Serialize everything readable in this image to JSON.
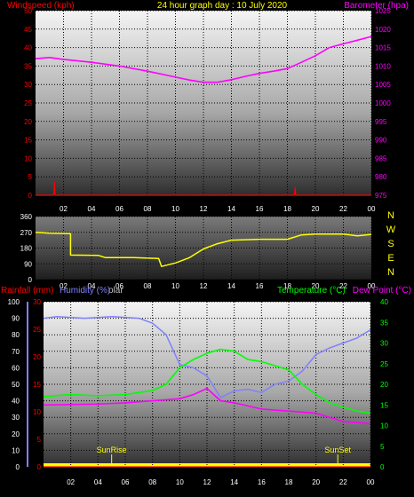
{
  "header": {
    "left_label": "Windspeed (kph)",
    "title": "24 hour graph day : 10 July 2020",
    "right_label": "Barometer (hpa)"
  },
  "colors": {
    "wind": "#ff0000",
    "barometer": "#ff00ff",
    "direction": "#ffff00",
    "rainfall": "#ff0000",
    "humidity": "#8080ff",
    "solar": "#c0c0c0",
    "temperature": "#00ff00",
    "dewpoint": "#ff00ff",
    "grid": "#000000",
    "sun_marker": "#ffff00"
  },
  "chart_data": [
    {
      "type": "line",
      "x_ticks": [
        "02",
        "04",
        "06",
        "08",
        "10",
        "12",
        "14",
        "16",
        "18",
        "20",
        "22",
        "00"
      ],
      "y_left": {
        "label": "Windspeed (kph)",
        "ticks": [
          0,
          5,
          10,
          15,
          20,
          25,
          30,
          35,
          40,
          45,
          50
        ],
        "range": [
          0,
          50
        ]
      },
      "y_right": {
        "label": "Barometer (hpa)",
        "ticks": [
          975,
          980,
          985,
          990,
          995,
          1000,
          1005,
          1010,
          1015,
          1020,
          1025
        ],
        "range": [
          975,
          1025
        ]
      },
      "series": [
        {
          "name": "Windspeed (kph)",
          "axis": "left",
          "points": [
            [
              0,
              0
            ],
            [
              1.3,
              0
            ],
            [
              1.35,
              3.5
            ],
            [
              1.4,
              0
            ],
            [
              18.5,
              0
            ],
            [
              18.55,
              2
            ],
            [
              18.6,
              0
            ],
            [
              24,
              0
            ]
          ]
        },
        {
          "name": "Barometer (hpa)",
          "axis": "right",
          "points": [
            [
              0,
              1012
            ],
            [
              1,
              1012.3
            ],
            [
              2,
              1011.8
            ],
            [
              4,
              1011
            ],
            [
              6,
              1010
            ],
            [
              8,
              1008.6
            ],
            [
              10,
              1007
            ],
            [
              11,
              1006.2
            ],
            [
              12,
              1005.6
            ],
            [
              13,
              1005.6
            ],
            [
              14,
              1006.3
            ],
            [
              15,
              1007.2
            ],
            [
              16,
              1008
            ],
            [
              17,
              1008.6
            ],
            [
              18,
              1009.3
            ],
            [
              19,
              1011
            ],
            [
              20,
              1012.8
            ],
            [
              21,
              1015
            ],
            [
              22,
              1016
            ],
            [
              23,
              1017
            ],
            [
              24,
              1018
            ]
          ]
        }
      ]
    },
    {
      "type": "line",
      "x_ticks": [
        "02",
        "04",
        "06",
        "08",
        "10",
        "12",
        "14",
        "16",
        "18",
        "20",
        "22",
        "00"
      ],
      "y_left": {
        "ticks": [
          0,
          90,
          180,
          270,
          360
        ],
        "range": [
          0,
          360
        ]
      },
      "y_right": {
        "ticks": [
          "N",
          "W",
          "S",
          "E",
          "N"
        ]
      },
      "series": [
        {
          "name": "Wind direction",
          "points": [
            [
              0,
              270
            ],
            [
              1,
              265
            ],
            [
              2.5,
              262
            ],
            [
              2.5,
              140
            ],
            [
              4.5,
              138
            ],
            [
              5,
              125
            ],
            [
              7,
              125
            ],
            [
              8.8,
              120
            ],
            [
              9,
              75
            ],
            [
              10,
              95
            ],
            [
              11,
              125
            ],
            [
              12,
              175
            ],
            [
              13,
              205
            ],
            [
              14,
              225
            ],
            [
              16,
              230
            ],
            [
              18,
              230
            ],
            [
              19,
              255
            ],
            [
              20,
              260
            ],
            [
              22,
              260
            ],
            [
              23,
              250
            ],
            [
              24,
              258
            ]
          ]
        }
      ]
    },
    {
      "type": "line",
      "x_ticks": [
        "02",
        "04",
        "06",
        "08",
        "10",
        "12",
        "14",
        "16",
        "18",
        "20",
        "22",
        "00"
      ],
      "y_left_rain": {
        "label": "Rainfall (mm)",
        "ticks": [
          0,
          5,
          10,
          15,
          20,
          25,
          30
        ],
        "range": [
          0,
          30
        ]
      },
      "y_left_humidity": {
        "label": "Humidity (%)",
        "ticks": [
          0,
          10,
          20,
          30,
          40,
          50,
          60,
          70,
          80,
          90,
          100
        ],
        "range": [
          0,
          100
        ]
      },
      "y_right": {
        "label": "Temperature (°C)",
        "ticks": [
          0,
          5,
          10,
          15,
          20,
          25,
          30,
          35,
          40
        ],
        "range": [
          0,
          40
        ]
      },
      "labels": {
        "solar": "olar",
        "dewpoint": "Dew Point (°C)"
      },
      "annotations": [
        {
          "text": "SunRise",
          "x": 5.0
        },
        {
          "text": "SunSet",
          "x": 21.6
        }
      ],
      "series": [
        {
          "name": "Humidity (%)",
          "axis": "humidity",
          "points": [
            [
              0,
              90
            ],
            [
              1,
              91
            ],
            [
              3,
              90
            ],
            [
              5,
              91
            ],
            [
              7,
              90
            ],
            [
              8,
              87
            ],
            [
              9,
              80
            ],
            [
              10,
              62
            ],
            [
              11,
              60
            ],
            [
              12,
              55
            ],
            [
              13,
              42
            ],
            [
              14,
              46
            ],
            [
              15,
              47
            ],
            [
              16,
              45
            ],
            [
              17,
              50
            ],
            [
              18,
              52
            ],
            [
              19,
              58
            ],
            [
              20,
              68
            ],
            [
              21,
              72
            ],
            [
              22,
              75
            ],
            [
              23,
              78
            ],
            [
              24,
              83
            ]
          ]
        },
        {
          "name": "Temperature (°C)",
          "axis": "right",
          "points": [
            [
              0,
              17
            ],
            [
              2,
              17.5
            ],
            [
              4,
              17.2
            ],
            [
              6,
              17.5
            ],
            [
              8,
              18.5
            ],
            [
              9,
              20
            ],
            [
              10,
              24
            ],
            [
              11,
              26
            ],
            [
              12,
              27.5
            ],
            [
              13,
              28.5
            ],
            [
              14,
              28
            ],
            [
              15,
              26
            ],
            [
              16,
              25.5
            ],
            [
              17,
              24.5
            ],
            [
              18,
              23.5
            ],
            [
              19,
              20
            ],
            [
              20,
              17.5
            ],
            [
              21,
              15.5
            ],
            [
              22,
              14.5
            ],
            [
              23,
              13.5
            ],
            [
              24,
              13
            ]
          ]
        },
        {
          "name": "Dew Point (°C)",
          "axis": "right",
          "points": [
            [
              0,
              15
            ],
            [
              4,
              15.2
            ],
            [
              6,
              15.5
            ],
            [
              8,
              16
            ],
            [
              10,
              16.5
            ],
            [
              11,
              17.5
            ],
            [
              12,
              19
            ],
            [
              13,
              16
            ],
            [
              14,
              15.5
            ],
            [
              16,
              14
            ],
            [
              18,
              13.5
            ],
            [
              20,
              13
            ],
            [
              22,
              11
            ],
            [
              24,
              10.5
            ]
          ]
        },
        {
          "name": "Rainfall (mm)",
          "axis": "rain",
          "points": [
            [
              0,
              0
            ],
            [
              24,
              0
            ]
          ]
        }
      ]
    }
  ]
}
